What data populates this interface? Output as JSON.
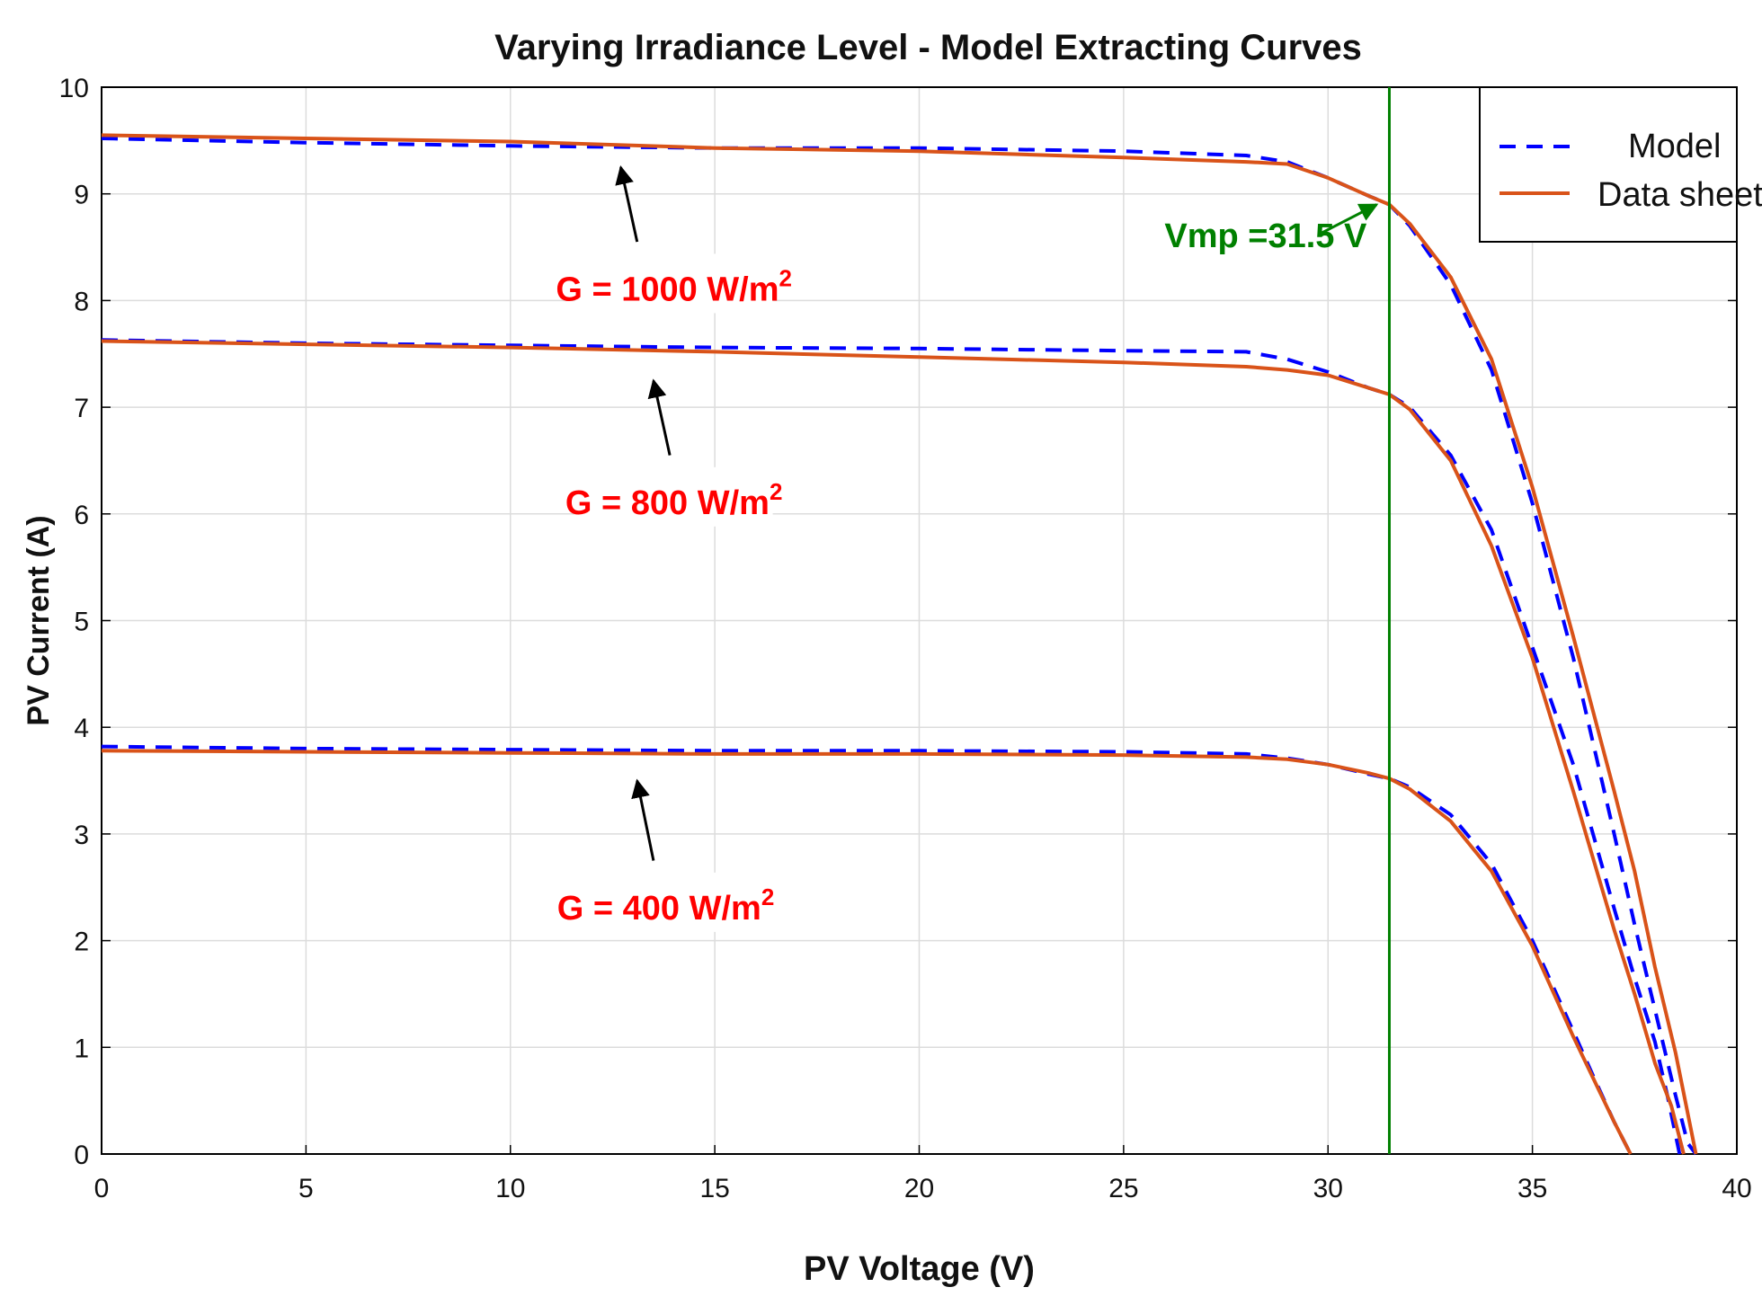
{
  "chart_data": {
    "type": "line",
    "title": "Varying Irradiance Level - Model Extracting Curves",
    "xlabel": "PV Voltage (V)",
    "ylabel": "PV Current (A)",
    "xlim": [
      0,
      40
    ],
    "ylim": [
      0,
      10
    ],
    "xticks": [
      0,
      5,
      10,
      15,
      20,
      25,
      30,
      35,
      40
    ],
    "yticks": [
      0,
      1,
      2,
      3,
      4,
      5,
      6,
      7,
      8,
      9,
      10
    ],
    "grid": true,
    "legend": {
      "position": "top-right",
      "entries": [
        {
          "label": "Model",
          "style": "dashed",
          "color": "#0000ff"
        },
        {
          "label": "Data sheet",
          "style": "solid",
          "color": "#d95319"
        }
      ]
    },
    "colors": {
      "model": "#0000ff",
      "datasheet": "#d95319",
      "vmp_line": "#008000",
      "annotation": "#ff0000",
      "grid": "#dcdcdc"
    },
    "vmp": {
      "value": 31.5,
      "label": "Vmp =31.5 V",
      "arrow_tip": [
        31.5,
        8.95
      ],
      "text_anchor": [
        26.0,
        8.5
      ]
    },
    "series": [
      {
        "name": "Model",
        "irradiance": 1000,
        "style": "dashed",
        "x": [
          0,
          5,
          10,
          15,
          20,
          25,
          28,
          29,
          30,
          31,
          31.5,
          32,
          33,
          34,
          35,
          36,
          37,
          37.5,
          38,
          38.5,
          38.8,
          39.0
        ],
        "y": [
          9.52,
          9.48,
          9.45,
          9.43,
          9.43,
          9.4,
          9.36,
          9.3,
          9.15,
          8.98,
          8.9,
          8.7,
          8.15,
          7.35,
          6.1,
          4.65,
          3.0,
          2.15,
          1.35,
          0.55,
          0.1,
          0.0
        ]
      },
      {
        "name": "Data sheet",
        "irradiance": 1000,
        "style": "solid",
        "x": [
          0,
          5,
          10,
          15,
          20,
          25,
          28,
          29,
          30,
          31,
          31.5,
          32,
          33,
          34,
          35,
          36,
          37,
          37.5,
          38,
          38.5,
          39.0
        ],
        "y": [
          9.55,
          9.52,
          9.49,
          9.43,
          9.4,
          9.34,
          9.3,
          9.28,
          9.15,
          8.98,
          8.9,
          8.72,
          8.22,
          7.45,
          6.25,
          4.85,
          3.4,
          2.65,
          1.75,
          0.95,
          0.0
        ]
      },
      {
        "name": "Model",
        "irradiance": 800,
        "style": "dashed",
        "x": [
          0,
          5,
          10,
          15,
          20,
          25,
          28,
          29,
          30,
          31,
          31.5,
          32,
          33,
          34,
          35,
          36,
          37,
          37.5,
          38,
          38.3,
          38.6
        ],
        "y": [
          7.63,
          7.6,
          7.58,
          7.56,
          7.55,
          7.53,
          7.52,
          7.45,
          7.33,
          7.18,
          7.12,
          7.0,
          6.55,
          5.85,
          4.75,
          3.65,
          2.3,
          1.65,
          1.05,
          0.55,
          0.0
        ]
      },
      {
        "name": "Data sheet",
        "irradiance": 800,
        "style": "solid",
        "x": [
          0,
          5,
          10,
          15,
          20,
          25,
          28,
          29,
          30,
          31,
          31.5,
          32,
          33,
          34,
          35,
          36,
          37,
          37.5,
          38,
          38.4,
          38.7
        ],
        "y": [
          7.62,
          7.59,
          7.56,
          7.52,
          7.47,
          7.42,
          7.38,
          7.35,
          7.3,
          7.18,
          7.12,
          6.98,
          6.5,
          5.7,
          4.65,
          3.4,
          2.1,
          1.5,
          0.85,
          0.45,
          0.0
        ]
      },
      {
        "name": "Model",
        "irradiance": 400,
        "style": "dashed",
        "x": [
          0,
          5,
          10,
          15,
          20,
          25,
          28,
          29,
          30,
          31,
          31.5,
          32,
          33,
          34,
          35,
          36,
          36.5,
          37,
          37.2,
          37.4
        ],
        "y": [
          3.82,
          3.8,
          3.79,
          3.78,
          3.78,
          3.77,
          3.75,
          3.71,
          3.65,
          3.56,
          3.52,
          3.44,
          3.18,
          2.72,
          2.0,
          1.15,
          0.72,
          0.3,
          0.15,
          0.0
        ]
      },
      {
        "name": "Data sheet",
        "irradiance": 400,
        "style": "solid",
        "x": [
          0,
          5,
          10,
          15,
          20,
          25,
          28,
          29,
          30,
          31,
          31.5,
          32,
          33,
          34,
          35,
          36,
          36.5,
          37,
          37.2,
          37.4
        ],
        "y": [
          3.78,
          3.77,
          3.76,
          3.75,
          3.75,
          3.74,
          3.72,
          3.7,
          3.65,
          3.57,
          3.52,
          3.42,
          3.12,
          2.65,
          1.95,
          1.1,
          0.7,
          0.3,
          0.15,
          0.0
        ]
      }
    ],
    "annotations": [
      {
        "prefix": "G = 1000 W/m",
        "sup": "2",
        "text_anchor": [
          14.0,
          8.0
        ],
        "arrow_from": [
          13.1,
          8.55
        ],
        "arrow_to": [
          12.7,
          9.25
        ]
      },
      {
        "prefix": "G = 800 W/m",
        "sup": "2",
        "text_anchor": [
          14.0,
          6.0
        ],
        "arrow_from": [
          13.9,
          6.55
        ],
        "arrow_to": [
          13.5,
          7.25
        ]
      },
      {
        "prefix": "G = 400 W/m",
        "sup": "2",
        "text_anchor": [
          13.8,
          2.2
        ],
        "arrow_from": [
          13.5,
          2.75
        ],
        "arrow_to": [
          13.1,
          3.5
        ]
      }
    ]
  }
}
